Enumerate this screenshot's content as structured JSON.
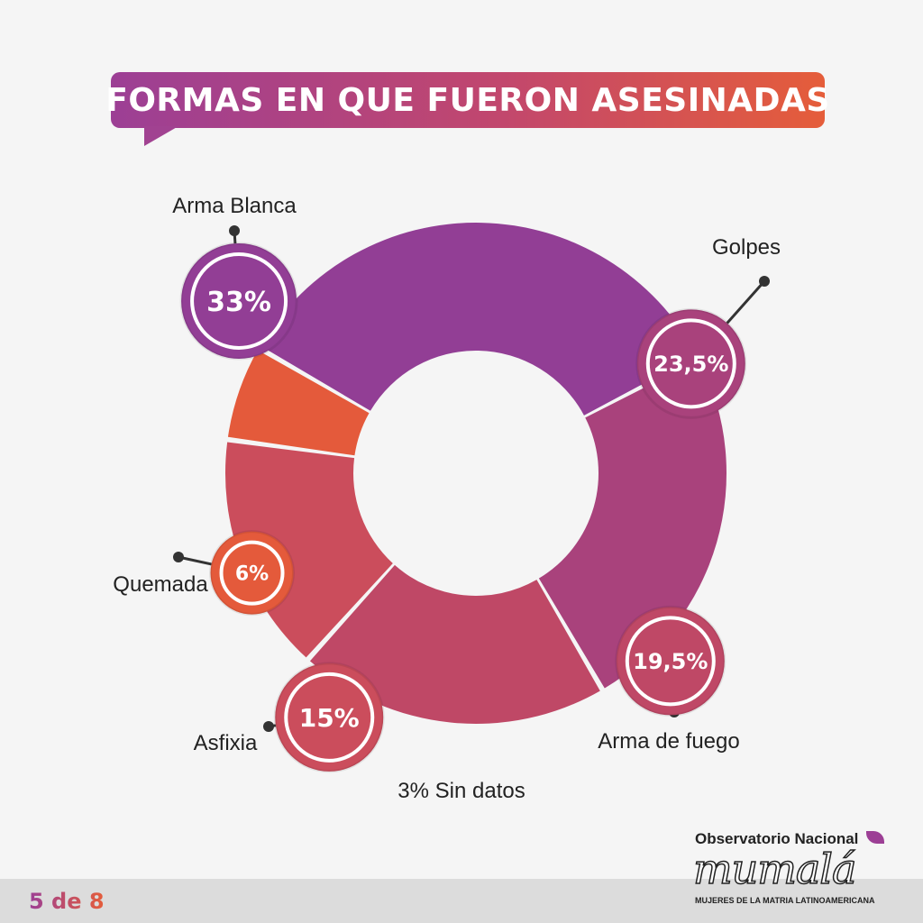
{
  "title": "FORMAS EN QUE FUERON ASESINADAS",
  "chart_data": {
    "type": "pie",
    "title": "FORMAS EN QUE FUERON ASESINADAS",
    "categories": [
      "Arma Blanca",
      "Golpes",
      "Arma de fuego",
      "Asfixia",
      "Quemada"
    ],
    "values": [
      33,
      23.5,
      19.5,
      15,
      6
    ],
    "value_labels": [
      "33%",
      "23,5%",
      "19,5%",
      "15%",
      "6%"
    ],
    "colors": [
      "#923e95",
      "#a9427c",
      "#bf4866",
      "#cb4d5c",
      "#e45a3b"
    ],
    "note": "3% Sin datos"
  },
  "footer": {
    "page": "5 de 8",
    "logo_top": "Observatorio Nacional",
    "logo_mark": "mumalá",
    "logo_sub": "MUJERES DE LA MATRIA LATINOAMERICANA"
  }
}
